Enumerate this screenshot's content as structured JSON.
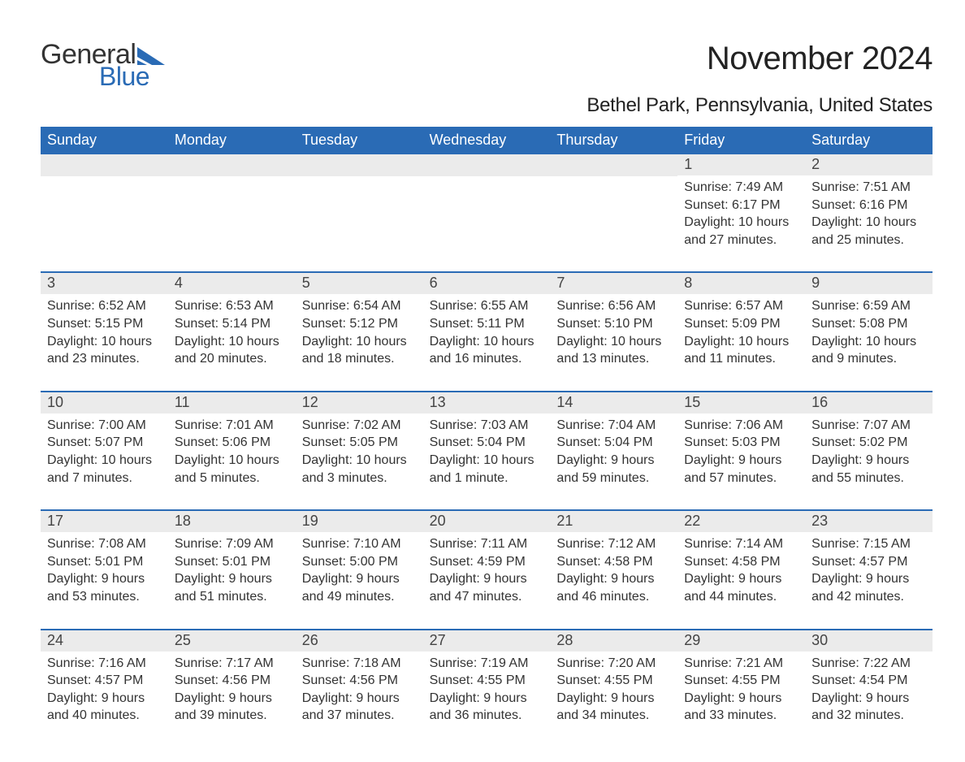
{
  "brand": {
    "word1": "General",
    "word2": "Blue",
    "flag_color": "#2a6bb5",
    "word1_color": "#333333",
    "word2_color": "#2a6bb5"
  },
  "title": "November 2024",
  "location": "Bethel Park, Pennsylvania, United States",
  "colors": {
    "header_bg": "#2a6bb5",
    "header_text": "#ffffff",
    "week_border": "#2a6bb5",
    "daynum_bg": "#ebebeb",
    "text": "#333333",
    "page_bg": "#ffffff"
  },
  "typography": {
    "title_size_pt": 30,
    "subtitle_size_pt": 18,
    "header_size_pt": 14,
    "body_size_pt": 12
  },
  "day_headers": [
    "Sunday",
    "Monday",
    "Tuesday",
    "Wednesday",
    "Thursday",
    "Friday",
    "Saturday"
  ],
  "weeks": [
    [
      null,
      null,
      null,
      null,
      null,
      {
        "n": "1",
        "sunrise": "Sunrise: 7:49 AM",
        "sunset": "Sunset: 6:17 PM",
        "d1": "Daylight: 10 hours",
        "d2": "and 27 minutes."
      },
      {
        "n": "2",
        "sunrise": "Sunrise: 7:51 AM",
        "sunset": "Sunset: 6:16 PM",
        "d1": "Daylight: 10 hours",
        "d2": "and 25 minutes."
      }
    ],
    [
      {
        "n": "3",
        "sunrise": "Sunrise: 6:52 AM",
        "sunset": "Sunset: 5:15 PM",
        "d1": "Daylight: 10 hours",
        "d2": "and 23 minutes."
      },
      {
        "n": "4",
        "sunrise": "Sunrise: 6:53 AM",
        "sunset": "Sunset: 5:14 PM",
        "d1": "Daylight: 10 hours",
        "d2": "and 20 minutes."
      },
      {
        "n": "5",
        "sunrise": "Sunrise: 6:54 AM",
        "sunset": "Sunset: 5:12 PM",
        "d1": "Daylight: 10 hours",
        "d2": "and 18 minutes."
      },
      {
        "n": "6",
        "sunrise": "Sunrise: 6:55 AM",
        "sunset": "Sunset: 5:11 PM",
        "d1": "Daylight: 10 hours",
        "d2": "and 16 minutes."
      },
      {
        "n": "7",
        "sunrise": "Sunrise: 6:56 AM",
        "sunset": "Sunset: 5:10 PM",
        "d1": "Daylight: 10 hours",
        "d2": "and 13 minutes."
      },
      {
        "n": "8",
        "sunrise": "Sunrise: 6:57 AM",
        "sunset": "Sunset: 5:09 PM",
        "d1": "Daylight: 10 hours",
        "d2": "and 11 minutes."
      },
      {
        "n": "9",
        "sunrise": "Sunrise: 6:59 AM",
        "sunset": "Sunset: 5:08 PM",
        "d1": "Daylight: 10 hours",
        "d2": "and 9 minutes."
      }
    ],
    [
      {
        "n": "10",
        "sunrise": "Sunrise: 7:00 AM",
        "sunset": "Sunset: 5:07 PM",
        "d1": "Daylight: 10 hours",
        "d2": "and 7 minutes."
      },
      {
        "n": "11",
        "sunrise": "Sunrise: 7:01 AM",
        "sunset": "Sunset: 5:06 PM",
        "d1": "Daylight: 10 hours",
        "d2": "and 5 minutes."
      },
      {
        "n": "12",
        "sunrise": "Sunrise: 7:02 AM",
        "sunset": "Sunset: 5:05 PM",
        "d1": "Daylight: 10 hours",
        "d2": "and 3 minutes."
      },
      {
        "n": "13",
        "sunrise": "Sunrise: 7:03 AM",
        "sunset": "Sunset: 5:04 PM",
        "d1": "Daylight: 10 hours",
        "d2": "and 1 minute."
      },
      {
        "n": "14",
        "sunrise": "Sunrise: 7:04 AM",
        "sunset": "Sunset: 5:04 PM",
        "d1": "Daylight: 9 hours",
        "d2": "and 59 minutes."
      },
      {
        "n": "15",
        "sunrise": "Sunrise: 7:06 AM",
        "sunset": "Sunset: 5:03 PM",
        "d1": "Daylight: 9 hours",
        "d2": "and 57 minutes."
      },
      {
        "n": "16",
        "sunrise": "Sunrise: 7:07 AM",
        "sunset": "Sunset: 5:02 PM",
        "d1": "Daylight: 9 hours",
        "d2": "and 55 minutes."
      }
    ],
    [
      {
        "n": "17",
        "sunrise": "Sunrise: 7:08 AM",
        "sunset": "Sunset: 5:01 PM",
        "d1": "Daylight: 9 hours",
        "d2": "and 53 minutes."
      },
      {
        "n": "18",
        "sunrise": "Sunrise: 7:09 AM",
        "sunset": "Sunset: 5:01 PM",
        "d1": "Daylight: 9 hours",
        "d2": "and 51 minutes."
      },
      {
        "n": "19",
        "sunrise": "Sunrise: 7:10 AM",
        "sunset": "Sunset: 5:00 PM",
        "d1": "Daylight: 9 hours",
        "d2": "and 49 minutes."
      },
      {
        "n": "20",
        "sunrise": "Sunrise: 7:11 AM",
        "sunset": "Sunset: 4:59 PM",
        "d1": "Daylight: 9 hours",
        "d2": "and 47 minutes."
      },
      {
        "n": "21",
        "sunrise": "Sunrise: 7:12 AM",
        "sunset": "Sunset: 4:58 PM",
        "d1": "Daylight: 9 hours",
        "d2": "and 46 minutes."
      },
      {
        "n": "22",
        "sunrise": "Sunrise: 7:14 AM",
        "sunset": "Sunset: 4:58 PM",
        "d1": "Daylight: 9 hours",
        "d2": "and 44 minutes."
      },
      {
        "n": "23",
        "sunrise": "Sunrise: 7:15 AM",
        "sunset": "Sunset: 4:57 PM",
        "d1": "Daylight: 9 hours",
        "d2": "and 42 minutes."
      }
    ],
    [
      {
        "n": "24",
        "sunrise": "Sunrise: 7:16 AM",
        "sunset": "Sunset: 4:57 PM",
        "d1": "Daylight: 9 hours",
        "d2": "and 40 minutes."
      },
      {
        "n": "25",
        "sunrise": "Sunrise: 7:17 AM",
        "sunset": "Sunset: 4:56 PM",
        "d1": "Daylight: 9 hours",
        "d2": "and 39 minutes."
      },
      {
        "n": "26",
        "sunrise": "Sunrise: 7:18 AM",
        "sunset": "Sunset: 4:56 PM",
        "d1": "Daylight: 9 hours",
        "d2": "and 37 minutes."
      },
      {
        "n": "27",
        "sunrise": "Sunrise: 7:19 AM",
        "sunset": "Sunset: 4:55 PM",
        "d1": "Daylight: 9 hours",
        "d2": "and 36 minutes."
      },
      {
        "n": "28",
        "sunrise": "Sunrise: 7:20 AM",
        "sunset": "Sunset: 4:55 PM",
        "d1": "Daylight: 9 hours",
        "d2": "and 34 minutes."
      },
      {
        "n": "29",
        "sunrise": "Sunrise: 7:21 AM",
        "sunset": "Sunset: 4:55 PM",
        "d1": "Daylight: 9 hours",
        "d2": "and 33 minutes."
      },
      {
        "n": "30",
        "sunrise": "Sunrise: 7:22 AM",
        "sunset": "Sunset: 4:54 PM",
        "d1": "Daylight: 9 hours",
        "d2": "and 32 minutes."
      }
    ]
  ]
}
